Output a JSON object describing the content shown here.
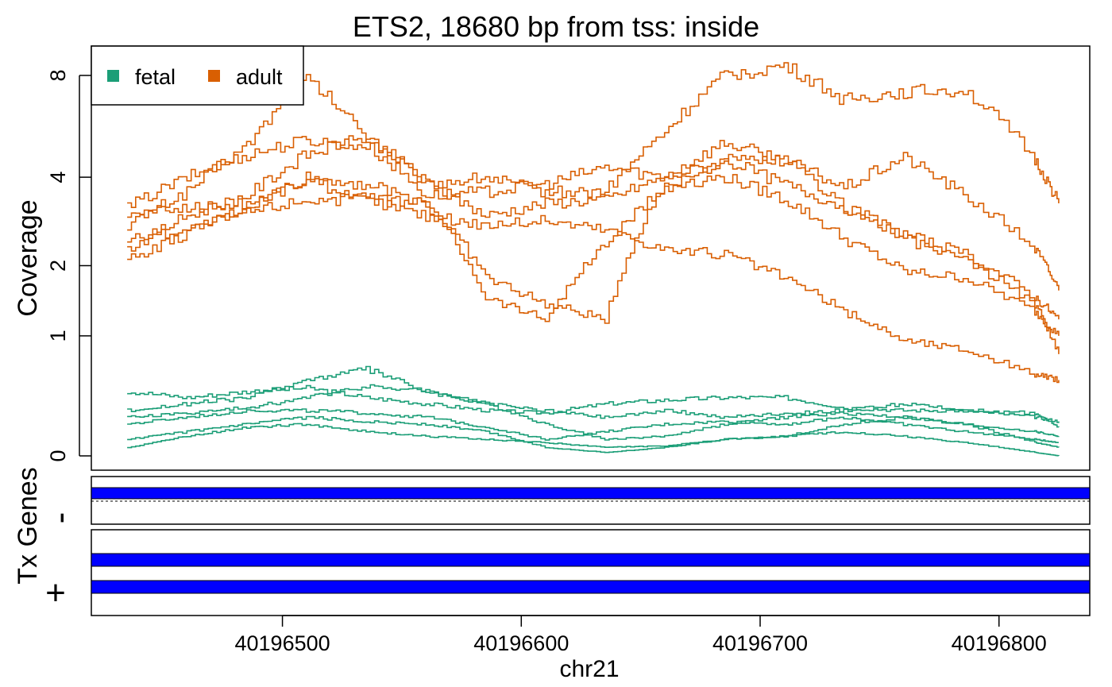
{
  "chart_data": {
    "type": "line",
    "title": "ETS2, 18680 bp from tss: inside",
    "xlabel": "chr21",
    "ylabel": "Coverage",
    "xlim": [
      40196420,
      40196838
    ],
    "ylim": [
      0,
      9
    ],
    "y_scale": "log(1+y)",
    "x_ticks": [
      40196500,
      40196600,
      40196700,
      40196800
    ],
    "y_ticks": [
      0,
      1,
      2,
      4,
      8
    ],
    "x_tick_labels": [
      "40196500",
      "40196600",
      "40196700",
      "40196800"
    ],
    "y_tick_labels": [
      "0",
      "1",
      "2",
      "4",
      "8"
    ],
    "grid": false,
    "legend": {
      "position": "top-left",
      "entries": [
        {
          "label": "fetal",
          "color": "#1b9e77"
        },
        {
          "label": "adult",
          "color": "#d95f02"
        }
      ]
    },
    "x": [
      40196435,
      40196460,
      40196485,
      40196510,
      40196535,
      40196560,
      40196585,
      40196610,
      40196635,
      40196660,
      40196685,
      40196710,
      40196735,
      40196760,
      40196785,
      40196815,
      40196825
    ],
    "series": [
      {
        "group": "adult",
        "color": "#d95f02",
        "values": [
          2.8,
          3.6,
          5.0,
          7.8,
          5.3,
          3.8,
          4.0,
          3.6,
          3.6,
          5.5,
          8.0,
          8.5,
          6.8,
          7.2,
          7.3,
          4.5,
          3.3
        ]
      },
      {
        "group": "adult",
        "color": "#d95f02",
        "values": [
          3.2,
          4.0,
          4.7,
          5.2,
          5.0,
          3.5,
          3.6,
          3.8,
          4.3,
          4.0,
          5.1,
          4.5,
          3.7,
          4.6,
          3.5,
          2.3,
          1.6
        ]
      },
      {
        "group": "adult",
        "color": "#d95f02",
        "values": [
          2.3,
          3.0,
          3.5,
          4.7,
          5.3,
          3.8,
          3.0,
          3.3,
          3.4,
          4.0,
          4.5,
          3.8,
          3.2,
          2.6,
          2.2,
          1.5,
          1.2
        ]
      },
      {
        "group": "adult",
        "color": "#d95f02",
        "values": [
          2.1,
          2.6,
          3.2,
          4.0,
          3.8,
          3.3,
          1.8,
          1.4,
          1.2,
          3.8,
          4.0,
          3.4,
          2.5,
          1.9,
          1.8,
          1.3,
          1.0
        ]
      },
      {
        "group": "adult",
        "color": "#d95f02",
        "values": [
          3.0,
          3.2,
          3.3,
          3.9,
          3.4,
          3.3,
          1.5,
          1.2,
          2.4,
          3.7,
          4.5,
          4.5,
          3.2,
          2.5,
          2.1,
          1.4,
          0.8
        ]
      },
      {
        "group": "adult",
        "color": "#d95f02",
        "values": [
          2.5,
          2.7,
          3.1,
          3.4,
          3.4,
          3.0,
          2.8,
          2.9,
          2.7,
          2.3,
          2.2,
          1.8,
          1.3,
          0.95,
          0.85,
          0.6,
          0.55
        ]
      },
      {
        "group": "fetal",
        "color": "#1b9e77",
        "values": [
          0.45,
          0.4,
          0.45,
          0.48,
          0.4,
          0.35,
          0.3,
          0.28,
          0.35,
          0.38,
          0.4,
          0.4,
          0.32,
          0.3,
          0.3,
          0.25,
          0.22
        ]
      },
      {
        "group": "fetal",
        "color": "#1b9e77",
        "values": [
          0.3,
          0.35,
          0.4,
          0.55,
          0.65,
          0.45,
          0.35,
          0.3,
          0.25,
          0.3,
          0.25,
          0.28,
          0.3,
          0.35,
          0.3,
          0.28,
          0.18
        ]
      },
      {
        "group": "fetal",
        "color": "#1b9e77",
        "values": [
          0.25,
          0.28,
          0.32,
          0.4,
          0.5,
          0.45,
          0.35,
          0.2,
          0.1,
          0.12,
          0.2,
          0.25,
          0.28,
          0.25,
          0.2,
          0.15,
          0.12
        ]
      },
      {
        "group": "fetal",
        "color": "#1b9e77",
        "values": [
          0.2,
          0.25,
          0.3,
          0.3,
          0.28,
          0.25,
          0.18,
          0.1,
          0.15,
          0.2,
          0.22,
          0.2,
          0.25,
          0.2,
          0.15,
          0.1,
          0.08
        ]
      },
      {
        "group": "fetal",
        "color": "#1b9e77",
        "values": [
          0.1,
          0.15,
          0.2,
          0.25,
          0.22,
          0.2,
          0.15,
          0.05,
          0.02,
          0.05,
          0.1,
          0.12,
          0.2,
          0.25,
          0.2,
          0.08,
          0.05
        ]
      },
      {
        "group": "fetal",
        "color": "#1b9e77",
        "values": [
          0.05,
          0.12,
          0.18,
          0.2,
          0.15,
          0.12,
          0.1,
          0.08,
          0.05,
          0.06,
          0.1,
          0.12,
          0.15,
          0.12,
          0.08,
          0.02,
          0.0
        ]
      }
    ],
    "tracks": {
      "label": "Tx Genes",
      "minus_strand_label": "-",
      "plus_strand_label": "+",
      "minus_strand_transcripts": 1,
      "plus_strand_transcripts": 2,
      "transcript_color": "#0000ff"
    }
  }
}
